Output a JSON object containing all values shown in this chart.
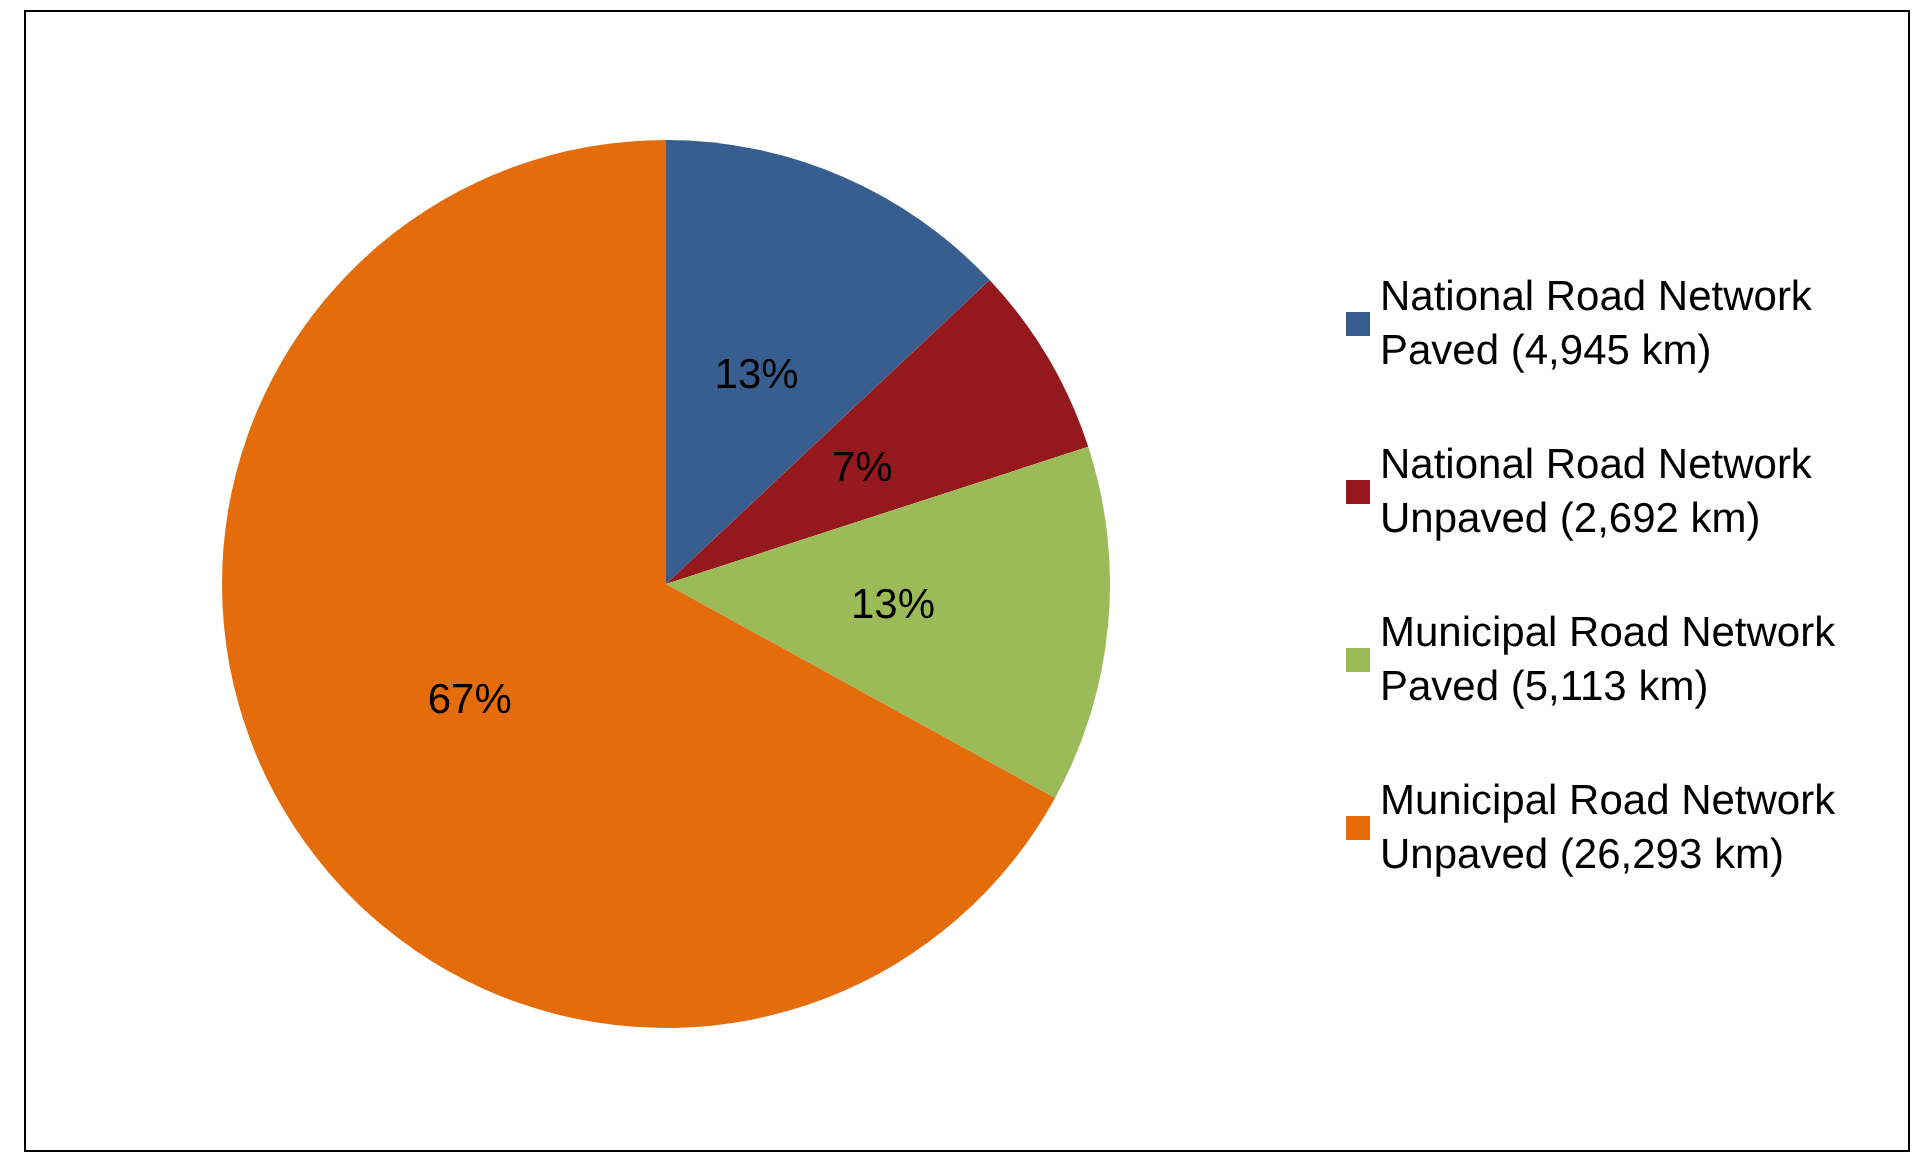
{
  "chart_data": {
    "type": "pie",
    "categories": [
      "National Road Network Paved (4,945 km)",
      "National Road Network Unpaved (2,692 km)",
      "Municipal Road Network Paved (5,113 km)",
      "Municipal Road Network Unpaved (26,293 km)"
    ],
    "values": [
      13,
      7,
      13,
      67
    ],
    "value_labels": [
      "13%",
      "7%",
      "13%",
      "67%"
    ],
    "colors": [
      "#375e8f",
      "#95191c",
      "#9bbb59",
      "#e46c0a"
    ],
    "legend": "right"
  }
}
